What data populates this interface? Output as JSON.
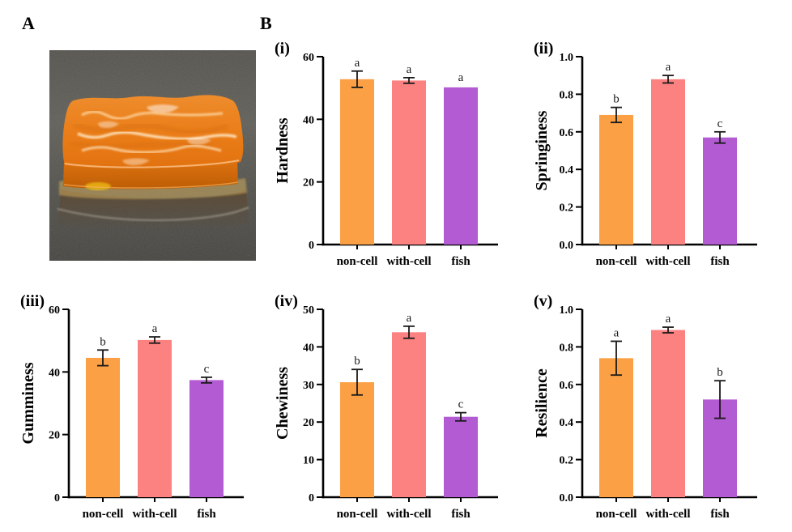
{
  "panels": {
    "a_label": "A",
    "b_label": "B"
  },
  "colors": {
    "bar_non_cell": "#FBA044",
    "bar_with_cell": "#FC8282",
    "bar_fish": "#B35BD3",
    "axis": "#000000",
    "error_bar": "#1a1a1a",
    "background": "#ffffff"
  },
  "photo": {
    "subject": "orange gel sample slab on dark speckled surface"
  },
  "chart_data": [
    {
      "type": "bar",
      "panel_label": "(i)",
      "ylabel": "Hardness",
      "ylim": [
        0,
        60
      ],
      "yticks": [
        0,
        20,
        40,
        60
      ],
      "ytick_labels": [
        "0",
        "20",
        "40",
        "60"
      ],
      "categories": [
        "non-cell",
        "with-cell",
        "fish"
      ],
      "values": [
        52.8,
        52.4,
        50.2
      ],
      "errors": [
        2.6,
        0.9,
        0
      ],
      "sig_letters": [
        "a",
        "a",
        "a"
      ],
      "legend": "none",
      "grid": false
    },
    {
      "type": "bar",
      "panel_label": "(ii)",
      "ylabel": "Springiness",
      "ylim": [
        0,
        1.0
      ],
      "yticks": [
        0,
        0.2,
        0.4,
        0.6,
        0.8,
        1.0
      ],
      "ytick_labels": [
        "0.0",
        "0.2",
        "0.4",
        "0.6",
        "0.8",
        "1.0"
      ],
      "categories": [
        "non-cell",
        "with-cell",
        "fish"
      ],
      "values": [
        0.69,
        0.88,
        0.57
      ],
      "errors": [
        0.04,
        0.02,
        0.03
      ],
      "sig_letters": [
        "b",
        "a",
        "c"
      ],
      "legend": "none",
      "grid": false
    },
    {
      "type": "bar",
      "panel_label": "(iii)",
      "ylabel": "Gumminess",
      "ylim": [
        0,
        60
      ],
      "yticks": [
        0,
        20,
        40,
        60
      ],
      "ytick_labels": [
        "0",
        "20",
        "40",
        "60"
      ],
      "categories": [
        "non-cell",
        "with-cell",
        "fish"
      ],
      "values": [
        44.5,
        50.2,
        37.4
      ],
      "errors": [
        2.5,
        1.0,
        0.9
      ],
      "sig_letters": [
        "b",
        "a",
        "c"
      ],
      "legend": "none",
      "grid": false
    },
    {
      "type": "bar",
      "panel_label": "(iv)",
      "ylabel": "Chewiness",
      "ylim": [
        0,
        50
      ],
      "yticks": [
        0,
        10,
        20,
        30,
        40,
        50
      ],
      "ytick_labels": [
        "0",
        "10",
        "20",
        "30",
        "40",
        "50"
      ],
      "categories": [
        "non-cell",
        "with-cell",
        "fish"
      ],
      "values": [
        30.6,
        43.9,
        21.4
      ],
      "errors": [
        3.4,
        1.6,
        1.1
      ],
      "sig_letters": [
        "b",
        "a",
        "c"
      ],
      "legend": "none",
      "grid": false
    },
    {
      "type": "bar",
      "panel_label": "(v)",
      "ylabel": "Resilience",
      "ylim": [
        0,
        1.0
      ],
      "yticks": [
        0,
        0.2,
        0.4,
        0.6,
        0.8,
        1.0
      ],
      "ytick_labels": [
        "0.0",
        "0.2",
        "0.4",
        "0.6",
        "0.8",
        "1.0"
      ],
      "categories": [
        "non-cell",
        "with-cell",
        "fish"
      ],
      "values": [
        0.74,
        0.89,
        0.52
      ],
      "errors": [
        0.09,
        0.015,
        0.1
      ],
      "sig_letters": [
        "a",
        "a",
        "b"
      ],
      "legend": "none",
      "grid": false
    }
  ]
}
